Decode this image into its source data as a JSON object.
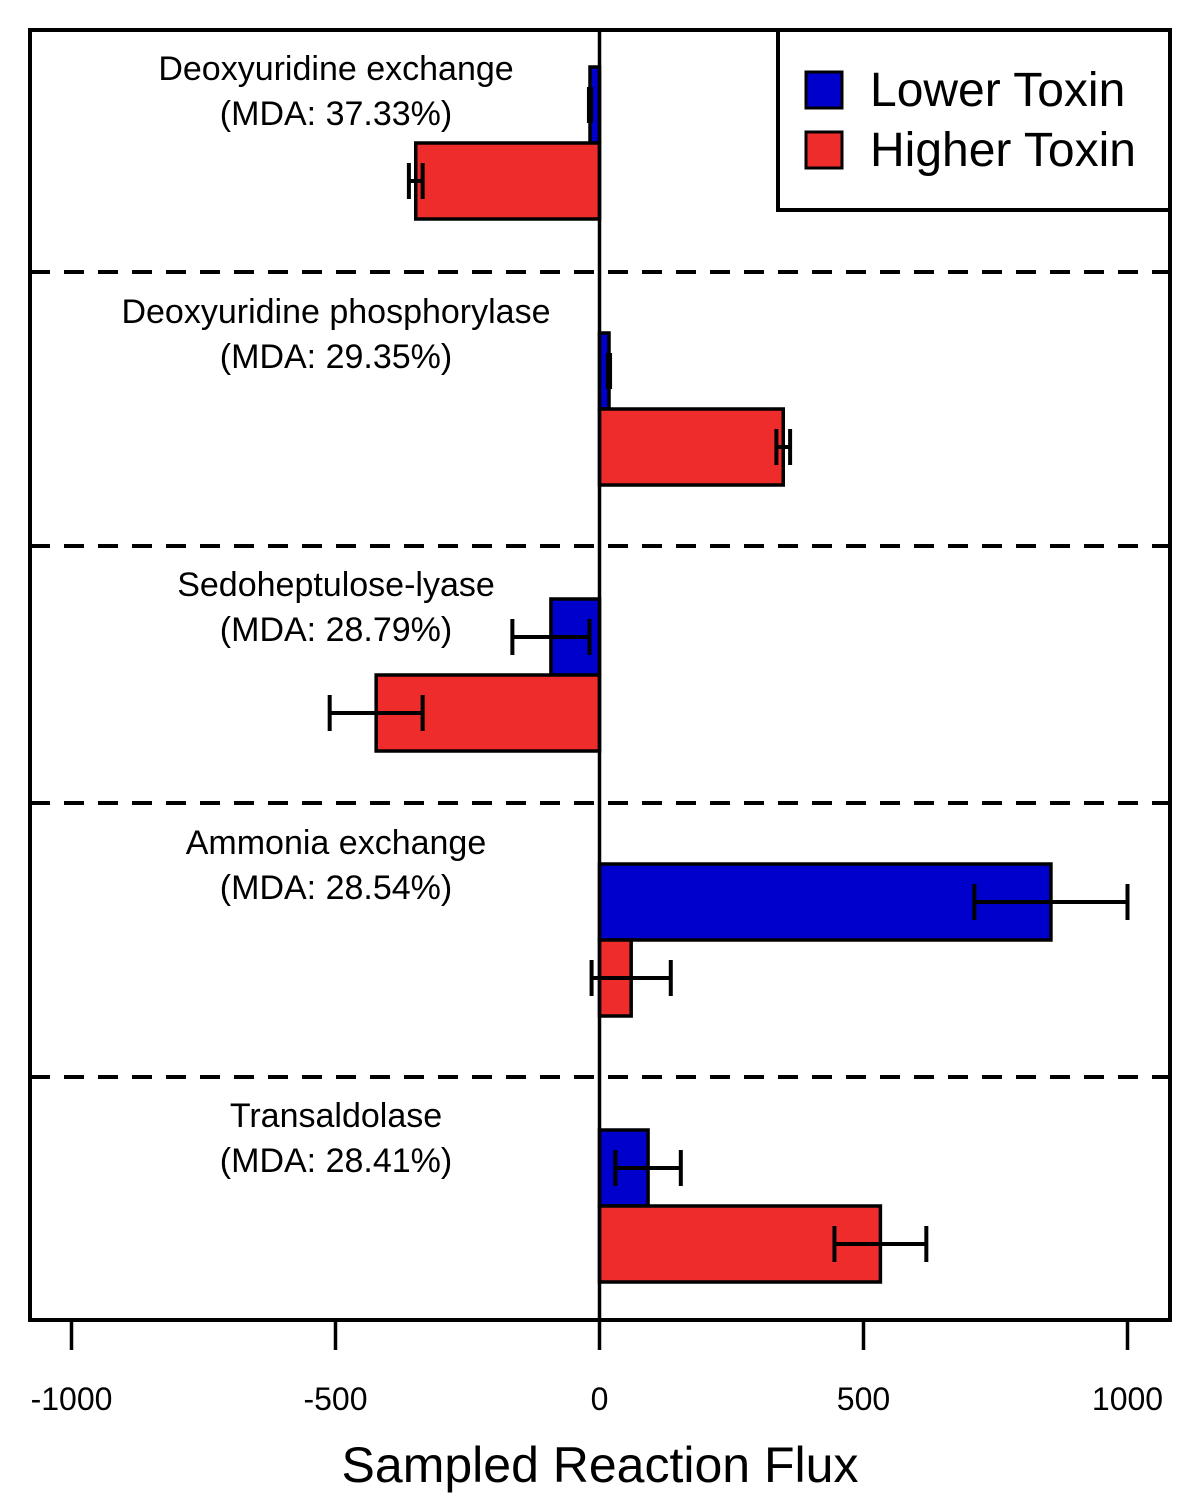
{
  "chart_data": {
    "type": "bar",
    "orientation": "horizontal",
    "title": "",
    "xlabel": "Sampled Reaction Flux",
    "ylabel": "",
    "xlim": [
      -1080,
      1080
    ],
    "xticks": [
      -1000,
      -500,
      0,
      500,
      1000
    ],
    "xtick_labels": [
      "-1000",
      "-500",
      "0",
      "500",
      "1000"
    ],
    "grid": false,
    "legend_position": "top-right",
    "categories": [
      "Deoxyuridine exchange",
      "Deoxyuridine phosphorylase",
      "Sedoheptulose-lyase",
      "Ammonia exchange",
      "Transaldolase"
    ],
    "category_annotations": [
      "(MDA: 37.33%)",
      "(MDA: 29.35%)",
      "(MDA: 28.79%)",
      "(MDA: 28.54%)",
      "(MDA: 28.41%)"
    ],
    "series": [
      {
        "name": "Lower Toxin",
        "color": "#0000CC",
        "values": [
          -18,
          18,
          -92,
          855,
          92
        ],
        "error": [
          2,
          2,
          73,
          145,
          62
        ]
      },
      {
        "name": "Higher Toxin",
        "color": "#EE2C2C",
        "values": [
          -348,
          348,
          -423,
          60,
          532
        ],
        "error": [
          13,
          13,
          88,
          75,
          87
        ]
      }
    ]
  }
}
